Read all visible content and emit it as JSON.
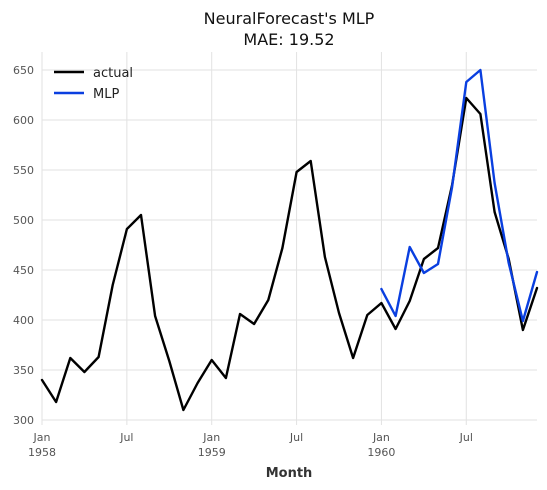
{
  "chart_data": {
    "type": "line",
    "title": "NeuralForecast's MLP",
    "subtitle": "MAE: 19.52",
    "xlabel": "Month",
    "ylabel": "",
    "grid": true,
    "legend_position": "top-left",
    "x": [
      "1958-01",
      "1958-02",
      "1958-03",
      "1958-04",
      "1958-05",
      "1958-06",
      "1958-07",
      "1958-08",
      "1958-09",
      "1958-10",
      "1958-11",
      "1958-12",
      "1959-01",
      "1959-02",
      "1959-03",
      "1959-04",
      "1959-05",
      "1959-06",
      "1959-07",
      "1959-08",
      "1959-09",
      "1959-10",
      "1959-11",
      "1959-12",
      "1960-01",
      "1960-02",
      "1960-03",
      "1960-04",
      "1960-05",
      "1960-06",
      "1960-07",
      "1960-08",
      "1960-09",
      "1960-10",
      "1960-11",
      "1960-12"
    ],
    "xlim": [
      "1958-01",
      "1960-12"
    ],
    "ylim": [
      295,
      668
    ],
    "yticks": [
      300,
      350,
      400,
      450,
      500,
      550,
      600,
      650
    ],
    "xticks": [
      {
        "date": "1958-01",
        "label": "Jan",
        "sublabel": "1958"
      },
      {
        "date": "1958-07",
        "label": "Jul",
        "sublabel": ""
      },
      {
        "date": "1959-01",
        "label": "Jan",
        "sublabel": "1959"
      },
      {
        "date": "1959-07",
        "label": "Jul",
        "sublabel": ""
      },
      {
        "date": "1960-01",
        "label": "Jan",
        "sublabel": "1960"
      },
      {
        "date": "1960-07",
        "label": "Jul",
        "sublabel": ""
      }
    ],
    "series": [
      {
        "name": "actual",
        "color": "#000000",
        "x": [
          "1958-01",
          "1958-02",
          "1958-03",
          "1958-04",
          "1958-05",
          "1958-06",
          "1958-07",
          "1958-08",
          "1958-09",
          "1958-10",
          "1958-11",
          "1958-12",
          "1959-01",
          "1959-02",
          "1959-03",
          "1959-04",
          "1959-05",
          "1959-06",
          "1959-07",
          "1959-08",
          "1959-09",
          "1959-10",
          "1959-11",
          "1959-12",
          "1960-01",
          "1960-02",
          "1960-03",
          "1960-04",
          "1960-05",
          "1960-06",
          "1960-07",
          "1960-08",
          "1960-09",
          "1960-10",
          "1960-11",
          "1960-12"
        ],
        "values": [
          340,
          318,
          362,
          348,
          363,
          435,
          491,
          505,
          404,
          359,
          310,
          337,
          360,
          342,
          406,
          396,
          420,
          472,
          548,
          559,
          463,
          407,
          362,
          405,
          417,
          391,
          419,
          461,
          472,
          535,
          622,
          606,
          508,
          461,
          390,
          432
        ]
      },
      {
        "name": "MLP",
        "color": "#0a3fe0",
        "x": [
          "1960-01",
          "1960-02",
          "1960-03",
          "1960-04",
          "1960-05",
          "1960-06",
          "1960-07",
          "1960-08",
          "1960-09",
          "1960-10",
          "1960-11",
          "1960-12"
        ],
        "values": [
          431,
          404,
          473,
          447,
          456,
          533,
          638,
          650,
          537,
          457,
          399,
          448
        ]
      }
    ]
  }
}
